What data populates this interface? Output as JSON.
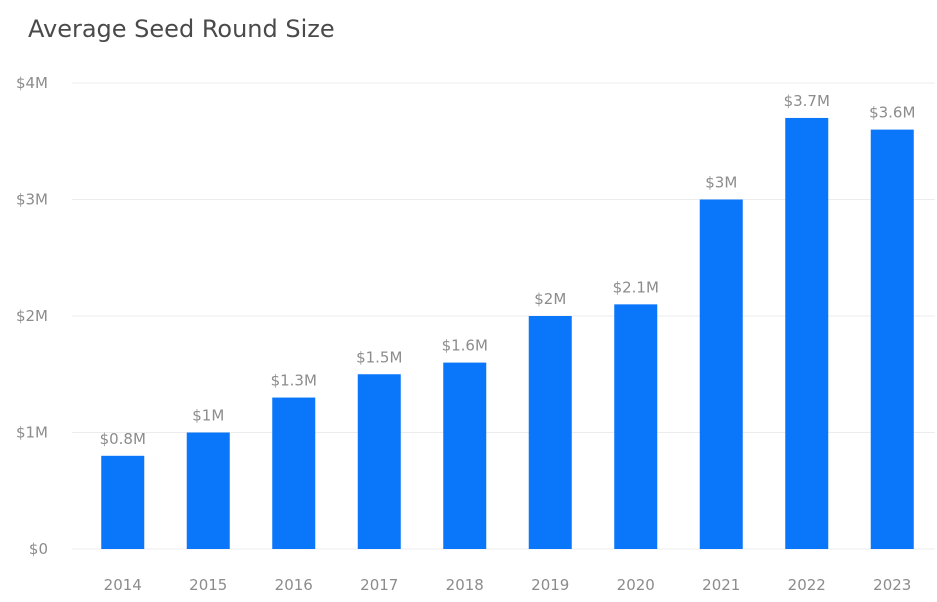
{
  "chart_data": {
    "type": "bar",
    "title": "Average Seed Round Size",
    "xlabel": "",
    "ylabel": "",
    "categories": [
      "2014",
      "2015",
      "2016",
      "2017",
      "2018",
      "2019",
      "2020",
      "2021",
      "2022",
      "2023"
    ],
    "values": [
      0.8,
      1,
      1.3,
      1.5,
      1.6,
      2,
      2.1,
      3,
      3.7,
      3.6
    ],
    "value_labels": [
      "$0.8M",
      "$1M",
      "$1.3M",
      "$1.5M",
      "$1.6M",
      "$2M",
      "$2.1M",
      "$3M",
      "$3.7M",
      "$3.6M"
    ],
    "ylim": [
      0,
      4
    ],
    "y_ticks": [
      0,
      1,
      2,
      3,
      4
    ],
    "y_tick_labels": [
      "$0",
      "$1M",
      "$2M",
      "$3M",
      "$4M"
    ],
    "grid": true,
    "legend": "none",
    "bar_color": "#0a77fb",
    "grid_color": "#ececec",
    "text_color": "#8c8c8c"
  }
}
